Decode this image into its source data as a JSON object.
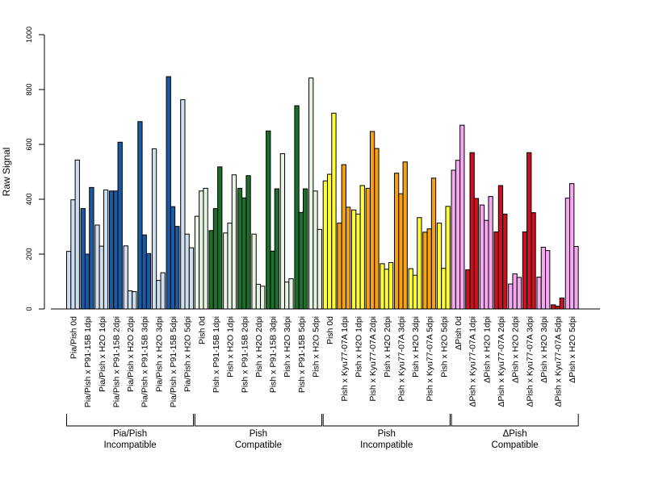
{
  "chart_data": {
    "type": "bar",
    "ylabel": "Raw Signal",
    "ylim": [
      0,
      1000
    ],
    "yticks": [
      0,
      200,
      400,
      600,
      800,
      1000
    ],
    "grid": false,
    "legend": "none",
    "groups": [
      {
        "name": [
          "Pia/Pish",
          "Incompatible"
        ],
        "colors": {
          "light": "#cfdff0",
          "dark": "#1a5aa3"
        },
        "categories": [
          {
            "label": "Pia/Pish 0d",
            "shade": "light",
            "values": [
              210,
              398,
              543
            ]
          },
          {
            "label": "Pia/Pish x P91-15B 1dpi",
            "shade": "dark",
            "values": [
              366,
              200,
              443
            ]
          },
          {
            "label": "Pia/Pish x H2O 1dpi",
            "shade": "light",
            "values": [
              306,
              229,
              434
            ]
          },
          {
            "label": "Pia/Pish x P91-15B 2dpi",
            "shade": "dark",
            "values": [
              430,
              430,
              608
            ]
          },
          {
            "label": "Pia/Pish x H2O 2dpi",
            "shade": "light",
            "values": [
              230,
              66,
              63
            ]
          },
          {
            "label": "Pia/Pish x P91-15B 3dpi",
            "shade": "dark",
            "values": [
              683,
              270,
              202
            ]
          },
          {
            "label": "Pia/Pish x H2O 3dpi",
            "shade": "light",
            "values": [
              584,
              104,
              132
            ]
          },
          {
            "label": "Pia/Pish x P91-15B 5dpi",
            "shade": "dark",
            "values": [
              847,
              373,
              301
            ]
          },
          {
            "label": "Pia/Pish x H2O 5dpi",
            "shade": "light",
            "values": [
              763,
              273,
              223
            ]
          }
        ]
      },
      {
        "name": [
          "Pish",
          "Compatible"
        ],
        "colors": {
          "light": "#e7f4e4",
          "dark": "#1d6e2a"
        },
        "categories": [
          {
            "label": "Pish 0d",
            "shade": "light",
            "values": [
              338,
              430,
              440
            ]
          },
          {
            "label": "Pish x P91-15B 1dpi",
            "shade": "dark",
            "values": [
              286,
              366,
              518
            ]
          },
          {
            "label": "Pish x H2O 1dpi",
            "shade": "light",
            "values": [
              277,
              313,
              489
            ]
          },
          {
            "label": "Pish x P91-15B 2dpi",
            "shade": "dark",
            "values": [
              440,
              405,
              486
            ]
          },
          {
            "label": "Pish x H2O 2dpi",
            "shade": "light",
            "values": [
              273,
              90,
              83
            ]
          },
          {
            "label": "Pish x P91-15B 3dpi",
            "shade": "dark",
            "values": [
              649,
              211,
              438
            ]
          },
          {
            "label": "Pish x H2O 3dpi",
            "shade": "light",
            "values": [
              566,
              98,
              110
            ]
          },
          {
            "label": "Pish x P91-15B 5dpi",
            "shade": "dark",
            "values": [
              741,
              352,
              438
            ]
          },
          {
            "label": "Pish x H2O 5dpi",
            "shade": "light",
            "values": [
              842,
              430,
              290
            ]
          }
        ]
      },
      {
        "name": [
          "Pish",
          "Incompatible"
        ],
        "colors": {
          "light": "#ffff33",
          "dark": "#f5a112"
        },
        "categories": [
          {
            "label": "Pish 0d",
            "shade": "light",
            "values": [
              467,
              491,
              714
            ]
          },
          {
            "label": "Pish x Kyu77-07A 1dpi",
            "shade": "dark",
            "values": [
              313,
              526,
              371
            ]
          },
          {
            "label": "Pish x H2O 1dpi",
            "shade": "light",
            "values": [
              361,
              346,
              450
            ]
          },
          {
            "label": "Pish x Kyu77-07A 2dpi",
            "shade": "dark",
            "values": [
              440,
              647,
              585
            ]
          },
          {
            "label": "Pish x H2O 2dpi",
            "shade": "light",
            "values": [
              165,
              145,
              169
            ]
          },
          {
            "label": "Pish x Kyu77-07A 3dpi",
            "shade": "dark",
            "values": [
              495,
              420,
              536
            ]
          },
          {
            "label": "Pish x H2O 3dpi",
            "shade": "light",
            "values": [
              147,
              123,
              333
            ]
          },
          {
            "label": "Pish x Kyu77-07A 5dpi",
            "shade": "dark",
            "values": [
              280,
              292,
              477
            ]
          },
          {
            "label": "Pish x H2O 5dpi",
            "shade": "light",
            "values": [
              313,
              148,
              374
            ]
          }
        ]
      },
      {
        "name": [
          "ΔPish",
          "Compatible"
        ],
        "colors": {
          "light": "#f5a8f0",
          "dark": "#cc1020"
        },
        "categories": [
          {
            "label": "ΔPish 0d",
            "shade": "light",
            "values": [
              506,
              542,
              670
            ]
          },
          {
            "label": "ΔPish x Kyu77-07A 1dpi",
            "shade": "dark",
            "values": [
              143,
              570,
              403
            ]
          },
          {
            "label": "ΔPish x H2O 1dpi",
            "shade": "light",
            "values": [
              379,
              323,
              410
            ]
          },
          {
            "label": "ΔPish x Kyu77-07A 2dpi",
            "shade": "dark",
            "values": [
              281,
              450,
              346
            ]
          },
          {
            "label": "ΔPish x H2O 2dpi",
            "shade": "light",
            "values": [
              91,
              128,
              115
            ]
          },
          {
            "label": "ΔPish x Kyu77-07A 3dpi",
            "shade": "dark",
            "values": [
              281,
              570,
              351
            ]
          },
          {
            "label": "ΔPish x H2O 3dpi",
            "shade": "light",
            "values": [
              116,
              225,
              213
            ]
          },
          {
            "label": "ΔPish x Kyu77-07A 5dpi",
            "shade": "dark",
            "values": [
              15,
              10,
              40
            ]
          },
          {
            "label": "ΔPish x H2O 5dpi",
            "shade": "light",
            "values": [
              404,
              457,
              228
            ]
          }
        ]
      }
    ]
  }
}
